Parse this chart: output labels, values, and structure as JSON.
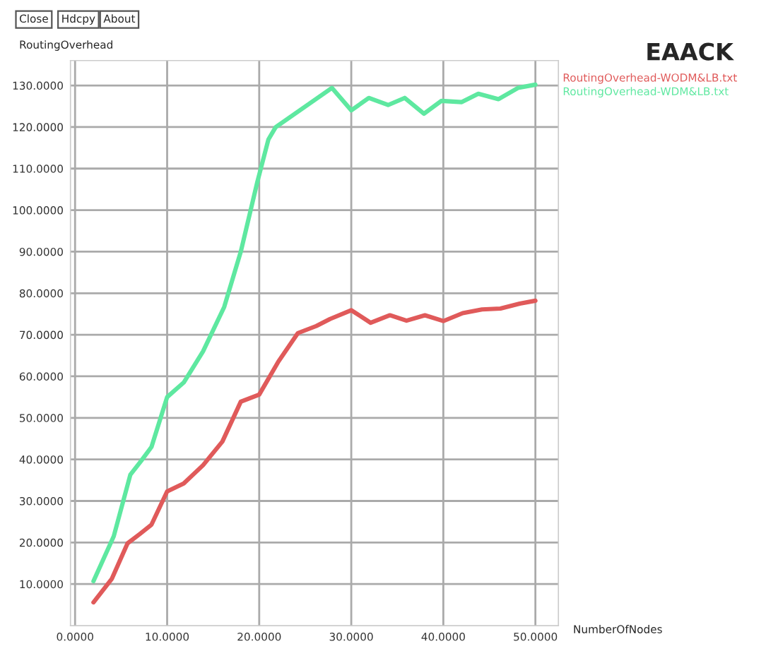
{
  "chart_data": {
    "type": "line",
    "title": "EAACK",
    "ylabel": "RoutingOverhead",
    "xlabel": "NumberOfNodes",
    "annotations": [
      "Close",
      "Hdcpy",
      "About"
    ],
    "series": [
      {
        "name": "RoutingOverhead-WODM&LB.txt",
        "color": "#e05a5a",
        "x": [
          2,
          4,
          5.7,
          7,
          8.3,
          10,
          11.8,
          13.9,
          16,
          18,
          20,
          22.1,
          24.2,
          26.2,
          27.7,
          30,
          32.1,
          34.2,
          36,
          38,
          40,
          42.1,
          44.2,
          46.2,
          48.3,
          50
        ],
        "values": [
          5.6,
          11.3,
          19.8,
          22,
          24.3,
          32.3,
          34.2,
          38.6,
          44.3,
          53.9,
          55.6,
          63.6,
          70.4,
          72.1,
          73.8,
          75.9,
          72.9,
          74.7,
          73.4,
          74.7,
          73.3,
          75.2,
          76.1,
          76.3,
          77.5,
          78.2
        ]
      },
      {
        "name": "RoutingOverhead-WDM&LB.txt",
        "color": "#5ee8a0",
        "x": [
          2,
          4.2,
          6,
          7.2,
          8.3,
          10,
          11.8,
          13.9,
          16.2,
          18,
          19.8,
          21,
          21.8,
          27.9,
          30,
          31.9,
          34,
          35.8,
          37.9,
          39.8,
          42,
          43.8,
          46,
          48.1,
          50
        ],
        "values": [
          10.7,
          21.5,
          36.3,
          39.7,
          43,
          55,
          58.5,
          66,
          76.7,
          90,
          106.8,
          117,
          120,
          129.4,
          124,
          127,
          125.3,
          127,
          123.2,
          126.3,
          126,
          128,
          126.7,
          129.4,
          130.2
        ]
      }
    ],
    "xlim": [
      -0.5,
      52.5
    ],
    "ylim": [
      0,
      136
    ],
    "xticks": [
      {
        "value": 0,
        "label": "0.0000"
      },
      {
        "value": 10,
        "label": "10.0000"
      },
      {
        "value": 20,
        "label": "20.0000"
      },
      {
        "value": 30,
        "label": "30.0000"
      },
      {
        "value": 40,
        "label": "40.0000"
      },
      {
        "value": 50,
        "label": "50.0000"
      }
    ],
    "yticks": [
      {
        "value": 10,
        "label": "10.0000"
      },
      {
        "value": 20,
        "label": "20.0000"
      },
      {
        "value": 30,
        "label": "30.0000"
      },
      {
        "value": 40,
        "label": "40.0000"
      },
      {
        "value": 50,
        "label": "50.0000"
      },
      {
        "value": 60,
        "label": "60.0000"
      },
      {
        "value": 70,
        "label": "70.0000"
      },
      {
        "value": 80,
        "label": "80.0000"
      },
      {
        "value": 90,
        "label": "90.0000"
      },
      {
        "value": 100,
        "label": "100.0000"
      },
      {
        "value": 110,
        "label": "110.0000"
      },
      {
        "value": 120,
        "label": "120.0000"
      },
      {
        "value": 130,
        "label": "130.0000"
      }
    ],
    "grid": true,
    "legend": "top right",
    "marker": "none",
    "line_style": "solid"
  }
}
